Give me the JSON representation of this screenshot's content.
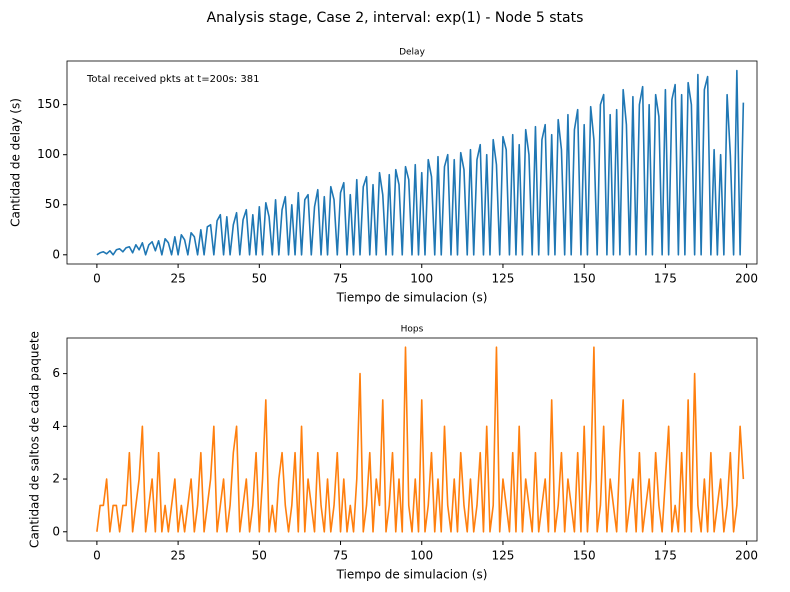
{
  "title": "Analysis stage, Case 2, interval: exp(1) - Node 5 stats",
  "chart_data": [
    {
      "type": "line",
      "title": "Delay",
      "xlabel": "Tiempo de simulacion (s)",
      "ylabel": "Cantidad de delay (s)",
      "annotation": "Total received pkts at t=200s: 381",
      "x": [
        0,
        1,
        2,
        3,
        4,
        5,
        6,
        7,
        8,
        9,
        10,
        11,
        12,
        13,
        14,
        15,
        16,
        17,
        18,
        19,
        20,
        21,
        22,
        23,
        24,
        25,
        26,
        27,
        28,
        29,
        30,
        31,
        32,
        33,
        34,
        35,
        36,
        37,
        38,
        39,
        40,
        41,
        42,
        43,
        44,
        45,
        46,
        47,
        48,
        49,
        50,
        51,
        52,
        53,
        54,
        55,
        56,
        57,
        58,
        59,
        60,
        61,
        62,
        63,
        64,
        65,
        66,
        67,
        68,
        69,
        70,
        71,
        72,
        73,
        74,
        75,
        76,
        77,
        78,
        79,
        80,
        81,
        82,
        83,
        84,
        85,
        86,
        87,
        88,
        89,
        90,
        91,
        92,
        93,
        94,
        95,
        96,
        97,
        98,
        99,
        100,
        101,
        102,
        103,
        104,
        105,
        106,
        107,
        108,
        109,
        110,
        111,
        112,
        113,
        114,
        115,
        116,
        117,
        118,
        119,
        120,
        121,
        122,
        123,
        124,
        125,
        126,
        127,
        128,
        129,
        130,
        131,
        132,
        133,
        134,
        135,
        136,
        137,
        138,
        139,
        140,
        141,
        142,
        143,
        144,
        145,
        146,
        147,
        148,
        149,
        150,
        151,
        152,
        153,
        154,
        155,
        156,
        157,
        158,
        159,
        160,
        161,
        162,
        163,
        164,
        165,
        166,
        167,
        168,
        169,
        170,
        171,
        172,
        173,
        174,
        175,
        176,
        177,
        178,
        179,
        180,
        181,
        182,
        183,
        184,
        185,
        186,
        187,
        188,
        189,
        190,
        191,
        192,
        193,
        194,
        195,
        196,
        197,
        198,
        199
      ],
      "series": [
        {
          "color": "#1f77b4",
          "values": [
            0,
            2,
            3,
            1,
            4,
            0,
            5,
            6,
            3,
            7,
            8,
            2,
            10,
            5,
            12,
            0,
            10,
            13,
            4,
            14,
            0,
            16,
            12,
            0,
            18,
            0,
            20,
            15,
            0,
            22,
            18,
            0,
            25,
            0,
            28,
            30,
            0,
            34,
            40,
            0,
            38,
            0,
            30,
            42,
            0,
            35,
            45,
            0,
            40,
            0,
            48,
            0,
            52,
            38,
            0,
            55,
            0,
            45,
            58,
            0,
            50,
            0,
            62,
            0,
            55,
            60,
            0,
            48,
            65,
            0,
            58,
            0,
            68,
            55,
            0,
            62,
            72,
            0,
            60,
            0,
            75,
            0,
            68,
            78,
            0,
            70,
            0,
            82,
            60,
            0,
            80,
            0,
            85,
            70,
            0,
            88,
            75,
            0,
            90,
            0,
            82,
            0,
            95,
            78,
            0,
            98,
            0,
            88,
            100,
            0,
            95,
            0,
            102,
            85,
            0,
            105,
            0,
            95,
            110,
            0,
            100,
            0,
            115,
            90,
            0,
            118,
            105,
            0,
            120,
            0,
            110,
            0,
            125,
            100,
            0,
            128,
            0,
            115,
            130,
            0,
            120,
            0,
            135,
            105,
            0,
            140,
            0,
            125,
            145,
            0,
            130,
            0,
            148,
            115,
            0,
            150,
            160,
            0,
            140,
            0,
            145,
            0,
            165,
            130,
            0,
            158,
            0,
            150,
            168,
            0,
            150,
            0,
            160,
            138,
            0,
            165,
            0,
            155,
            170,
            0,
            160,
            0,
            172,
            150,
            0,
            180,
            0,
            165,
            178,
            0,
            105,
            0,
            100,
            0,
            160,
            99,
            0,
            184,
            0,
            152
          ]
        }
      ],
      "xlim": [
        -9.2,
        203.2
      ],
      "ylim": [
        -9.2,
        193.6
      ],
      "xticks": [
        0,
        25,
        50,
        75,
        100,
        125,
        150,
        175,
        200
      ],
      "yticks": [
        0,
        50,
        100,
        150
      ]
    },
    {
      "type": "line",
      "title": "Hops",
      "xlabel": "Tiempo de simulacion (s)",
      "ylabel": "Cantidad de saltos de cada paquete",
      "x": [
        0,
        1,
        2,
        3,
        4,
        5,
        6,
        7,
        8,
        9,
        10,
        11,
        12,
        13,
        14,
        15,
        16,
        17,
        18,
        19,
        20,
        21,
        22,
        23,
        24,
        25,
        26,
        27,
        28,
        29,
        30,
        31,
        32,
        33,
        34,
        35,
        36,
        37,
        38,
        39,
        40,
        41,
        42,
        43,
        44,
        45,
        46,
        47,
        48,
        49,
        50,
        51,
        52,
        53,
        54,
        55,
        56,
        57,
        58,
        59,
        60,
        61,
        62,
        63,
        64,
        65,
        66,
        67,
        68,
        69,
        70,
        71,
        72,
        73,
        74,
        75,
        76,
        77,
        78,
        79,
        80,
        81,
        82,
        83,
        84,
        85,
        86,
        87,
        88,
        89,
        90,
        91,
        92,
        93,
        94,
        95,
        96,
        97,
        98,
        99,
        100,
        101,
        102,
        103,
        104,
        105,
        106,
        107,
        108,
        109,
        110,
        111,
        112,
        113,
        114,
        115,
        116,
        117,
        118,
        119,
        120,
        121,
        122,
        123,
        124,
        125,
        126,
        127,
        128,
        129,
        130,
        131,
        132,
        133,
        134,
        135,
        136,
        137,
        138,
        139,
        140,
        141,
        142,
        143,
        144,
        145,
        146,
        147,
        148,
        149,
        150,
        151,
        152,
        153,
        154,
        155,
        156,
        157,
        158,
        159,
        160,
        161,
        162,
        163,
        164,
        165,
        166,
        167,
        168,
        169,
        170,
        171,
        172,
        173,
        174,
        175,
        176,
        177,
        178,
        179,
        180,
        181,
        182,
        183,
        184,
        185,
        186,
        187,
        188,
        189,
        190,
        191,
        192,
        193,
        194,
        195,
        196,
        197,
        198,
        199
      ],
      "series": [
        {
          "color": "#ff7f0e",
          "values": [
            0,
            1,
            1,
            2,
            0,
            1,
            1,
            0,
            1,
            1,
            3,
            0,
            1,
            2,
            4,
            0,
            1,
            2,
            0,
            3,
            0,
            1,
            0,
            1,
            2,
            0,
            1,
            0,
            1,
            2,
            0,
            1,
            3,
            0,
            1,
            2,
            4,
            0,
            1,
            2,
            0,
            1,
            3,
            4,
            0,
            1,
            2,
            0,
            1,
            3,
            0,
            2,
            5,
            0,
            1,
            0,
            2,
            3,
            1,
            0,
            1,
            3,
            0,
            4,
            0,
            2,
            1,
            0,
            3,
            1,
            0,
            2,
            0,
            1,
            3,
            0,
            2,
            0,
            1,
            0,
            2,
            6,
            0,
            1,
            3,
            0,
            2,
            1,
            5,
            0,
            1,
            3,
            0,
            2,
            0,
            7,
            1,
            0,
            2,
            0,
            5,
            0,
            1,
            3,
            0,
            2,
            0,
            4,
            1,
            0,
            2,
            0,
            3,
            1,
            0,
            2,
            0,
            1,
            3,
            0,
            4,
            0,
            1,
            7,
            0,
            2,
            1,
            0,
            3,
            0,
            4,
            0,
            2,
            1,
            0,
            3,
            0,
            1,
            2,
            0,
            5,
            0,
            1,
            3,
            0,
            2,
            1,
            0,
            3,
            0,
            4,
            0,
            2,
            7,
            0,
            1,
            4,
            0,
            2,
            1,
            0,
            3,
            5,
            0,
            1,
            2,
            0,
            3,
            0,
            1,
            2,
            0,
            3,
            1,
            0,
            2,
            4,
            0,
            1,
            0,
            3,
            0,
            5,
            0,
            6,
            1,
            0,
            2,
            0,
            3,
            0,
            1,
            2,
            0,
            1,
            3,
            0,
            1,
            4,
            2
          ]
        }
      ],
      "xlim": [
        -9.2,
        203.2
      ],
      "ylim": [
        -0.35,
        7.35
      ],
      "xticks": [
        0,
        25,
        50,
        75,
        100,
        125,
        150,
        175,
        200
      ],
      "yticks": [
        0,
        2,
        4,
        6
      ]
    }
  ]
}
